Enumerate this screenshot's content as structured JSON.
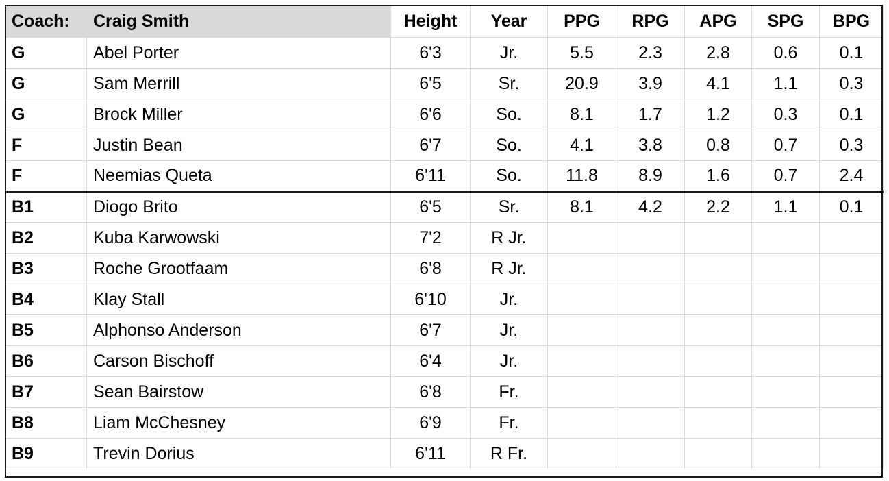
{
  "header": {
    "coach_label": "Coach:",
    "coach_name": "Craig Smith",
    "columns": [
      "Height",
      "Year",
      "PPG",
      "RPG",
      "APG",
      "SPG",
      "BPG"
    ]
  },
  "rows": [
    {
      "pos": "G",
      "name": "Abel Porter",
      "height": "6'3",
      "year": "Jr.",
      "ppg": "5.5",
      "rpg": "2.3",
      "apg": "2.8",
      "spg": "0.6",
      "bpg": "0.1"
    },
    {
      "pos": "G",
      "name": "Sam Merrill",
      "height": "6'5",
      "year": "Sr.",
      "ppg": "20.9",
      "rpg": "3.9",
      "apg": "4.1",
      "spg": "1.1",
      "bpg": "0.3"
    },
    {
      "pos": "G",
      "name": "Brock Miller",
      "height": "6'6",
      "year": "So.",
      "ppg": "8.1",
      "rpg": "1.7",
      "apg": "1.2",
      "spg": "0.3",
      "bpg": "0.1"
    },
    {
      "pos": "F",
      "name": "Justin Bean",
      "height": "6'7",
      "year": "So.",
      "ppg": "4.1",
      "rpg": "3.8",
      "apg": "0.8",
      "spg": "0.7",
      "bpg": "0.3"
    },
    {
      "pos": "F",
      "name": "Neemias Queta",
      "height": "6'11",
      "year": "So.",
      "ppg": "11.8",
      "rpg": "8.9",
      "apg": "1.6",
      "spg": "0.7",
      "bpg": "2.4"
    },
    {
      "pos": "B1",
      "name": "Diogo Brito",
      "height": "6'5",
      "year": "Sr.",
      "ppg": "8.1",
      "rpg": "4.2",
      "apg": "2.2",
      "spg": "1.1",
      "bpg": "0.1"
    },
    {
      "pos": "B2",
      "name": "Kuba Karwowski",
      "height": "7'2",
      "year": "R Jr.",
      "ppg": "",
      "rpg": "",
      "apg": "",
      "spg": "",
      "bpg": ""
    },
    {
      "pos": "B3",
      "name": "Roche Grootfaam",
      "height": "6'8",
      "year": "R Jr.",
      "ppg": "",
      "rpg": "",
      "apg": "",
      "spg": "",
      "bpg": ""
    },
    {
      "pos": "B4",
      "name": "Klay Stall",
      "height": "6'10",
      "year": "Jr.",
      "ppg": "",
      "rpg": "",
      "apg": "",
      "spg": "",
      "bpg": ""
    },
    {
      "pos": "B5",
      "name": "Alphonso Anderson",
      "height": "6'7",
      "year": "Jr.",
      "ppg": "",
      "rpg": "",
      "apg": "",
      "spg": "",
      "bpg": ""
    },
    {
      "pos": "B6",
      "name": "Carson Bischoff",
      "height": "6'4",
      "year": "Jr.",
      "ppg": "",
      "rpg": "",
      "apg": "",
      "spg": "",
      "bpg": ""
    },
    {
      "pos": "B7",
      "name": "Sean Bairstow",
      "height": "6'8",
      "year": "Fr.",
      "ppg": "",
      "rpg": "",
      "apg": "",
      "spg": "",
      "bpg": ""
    },
    {
      "pos": "B8",
      "name": "Liam McChesney",
      "height": "6'9",
      "year": "Fr.",
      "ppg": "",
      "rpg": "",
      "apg": "",
      "spg": "",
      "bpg": ""
    },
    {
      "pos": "B9",
      "name": "Trevin Dorius",
      "height": "6'11",
      "year": "R Fr.",
      "ppg": "",
      "rpg": "",
      "apg": "",
      "spg": "",
      "bpg": ""
    }
  ]
}
